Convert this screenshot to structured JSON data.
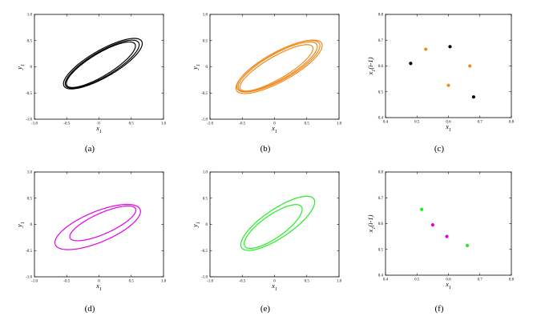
{
  "panels": [
    {
      "id": "a",
      "caption": "(a)",
      "type": "line",
      "xlabel": "x1",
      "ylabel": "y1",
      "xlim": [
        -1.0,
        1.0
      ],
      "ylim": [
        -1.0,
        1.0
      ],
      "xticks": [
        "-1.0",
        "-0.5",
        "0",
        "0.5",
        "1.0"
      ],
      "yticks": [
        "-1.0",
        "-0.5",
        "0",
        "0.5",
        "1.0"
      ],
      "color": "#000000",
      "loops": [
        {
          "cx": 0.06,
          "cy": 0.06,
          "a": 0.74,
          "b": 0.24,
          "theta": 0.64
        },
        {
          "cx": 0.03,
          "cy": 0.04,
          "a": 0.66,
          "b": 0.2,
          "theta": 0.66
        },
        {
          "cx": 0.05,
          "cy": 0.05,
          "a": 0.7,
          "b": 0.22,
          "theta": 0.65
        }
      ]
    },
    {
      "id": "b",
      "caption": "(b)",
      "type": "line",
      "xlabel": "x1",
      "ylabel": "y1",
      "xlim": [
        -1.0,
        1.0
      ],
      "ylim": [
        -1.0,
        1.0
      ],
      "xticks": [
        "-1.0",
        "-0.5",
        "0",
        "0.5",
        "1.0"
      ],
      "yticks": [
        "-1.0",
        "-0.5",
        "0",
        "0.5",
        "1.0"
      ],
      "color": "#f28a1e",
      "loops": [
        {
          "cx": 0.07,
          "cy": 0.0,
          "a": 0.8,
          "b": 0.26,
          "theta": 0.62
        },
        {
          "cx": 0.05,
          "cy": 0.0,
          "a": 0.74,
          "b": 0.23,
          "theta": 0.63
        },
        {
          "cx": 0.03,
          "cy": -0.02,
          "a": 0.69,
          "b": 0.2,
          "theta": 0.64
        },
        {
          "cx": 0.06,
          "cy": 0.01,
          "a": 0.77,
          "b": 0.25,
          "theta": 0.62
        }
      ]
    },
    {
      "id": "c",
      "caption": "(c)",
      "type": "scatter",
      "xlabel": "x1",
      "ylabel": "x1(i-1)",
      "xlim": [
        0.4,
        0.8
      ],
      "ylim": [
        0.4,
        0.8
      ],
      "xticks": [
        "0.4",
        "0.5",
        "0.6",
        "0.7",
        "0.8"
      ],
      "yticks": [
        "0.4",
        "0.5",
        "0.6",
        "0.7",
        "0.8"
      ],
      "series": [
        {
          "color": "#000000",
          "points": [
            [
              0.48,
              0.61
            ],
            [
              0.605,
              0.675
            ],
            [
              0.68,
              0.48
            ]
          ]
        },
        {
          "color": "#f28a1e",
          "points": [
            [
              0.528,
              0.665
            ],
            [
              0.668,
              0.6
            ],
            [
              0.6,
              0.525
            ]
          ]
        }
      ]
    },
    {
      "id": "d",
      "caption": "(d)",
      "type": "line",
      "xlabel": "x1",
      "ylabel": "y1",
      "xlim": [
        -1.0,
        1.0
      ],
      "ylim": [
        -1.0,
        1.0
      ],
      "xticks": [
        "-1.0",
        "-0.5",
        "0",
        "0.5",
        "1.0"
      ],
      "yticks": [
        "-1.0",
        "-0.5",
        "0",
        "0.5",
        "1.0"
      ],
      "color": "#e600e6",
      "loops": [
        {
          "cx": -0.02,
          "cy": -0.05,
          "a": 0.74,
          "b": 0.28,
          "theta": 0.5
        },
        {
          "cx": 0.06,
          "cy": 0.02,
          "a": 0.58,
          "b": 0.19,
          "theta": 0.52
        }
      ]
    },
    {
      "id": "e",
      "caption": "(e)",
      "type": "line",
      "xlabel": "x1",
      "ylabel": "y1",
      "xlim": [
        -1.0,
        1.0
      ],
      "ylim": [
        -1.0,
        1.0
      ],
      "xticks": [
        "-1.0",
        "-0.5",
        "0",
        "0.5",
        "1.0"
      ],
      "yticks": [
        "-1.0",
        "-0.5",
        "0",
        "0.5",
        "1.0"
      ],
      "color": "#22ee22",
      "loops": [
        {
          "cx": 0.05,
          "cy": 0.02,
          "a": 0.73,
          "b": 0.25,
          "theta": 0.72
        },
        {
          "cx": -0.02,
          "cy": -0.04,
          "a": 0.58,
          "b": 0.2,
          "theta": 0.74
        }
      ]
    },
    {
      "id": "f",
      "caption": "(f)",
      "type": "scatter",
      "xlabel": "x1",
      "ylabel": "x1(i-1)",
      "xlim": [
        0.4,
        0.8
      ],
      "ylim": [
        0.4,
        0.8
      ],
      "xticks": [
        "0.4",
        "0.5",
        "0.6",
        "0.7",
        "0.8"
      ],
      "yticks": [
        "0.4",
        "0.5",
        "0.6",
        "0.7",
        "0.8"
      ],
      "series": [
        {
          "color": "#22ee22",
          "points": [
            [
              0.515,
              0.655
            ],
            [
              0.66,
              0.515
            ]
          ]
        },
        {
          "color": "#e600e6",
          "points": [
            [
              0.55,
              0.595
            ],
            [
              0.595,
              0.55
            ]
          ]
        }
      ]
    }
  ]
}
